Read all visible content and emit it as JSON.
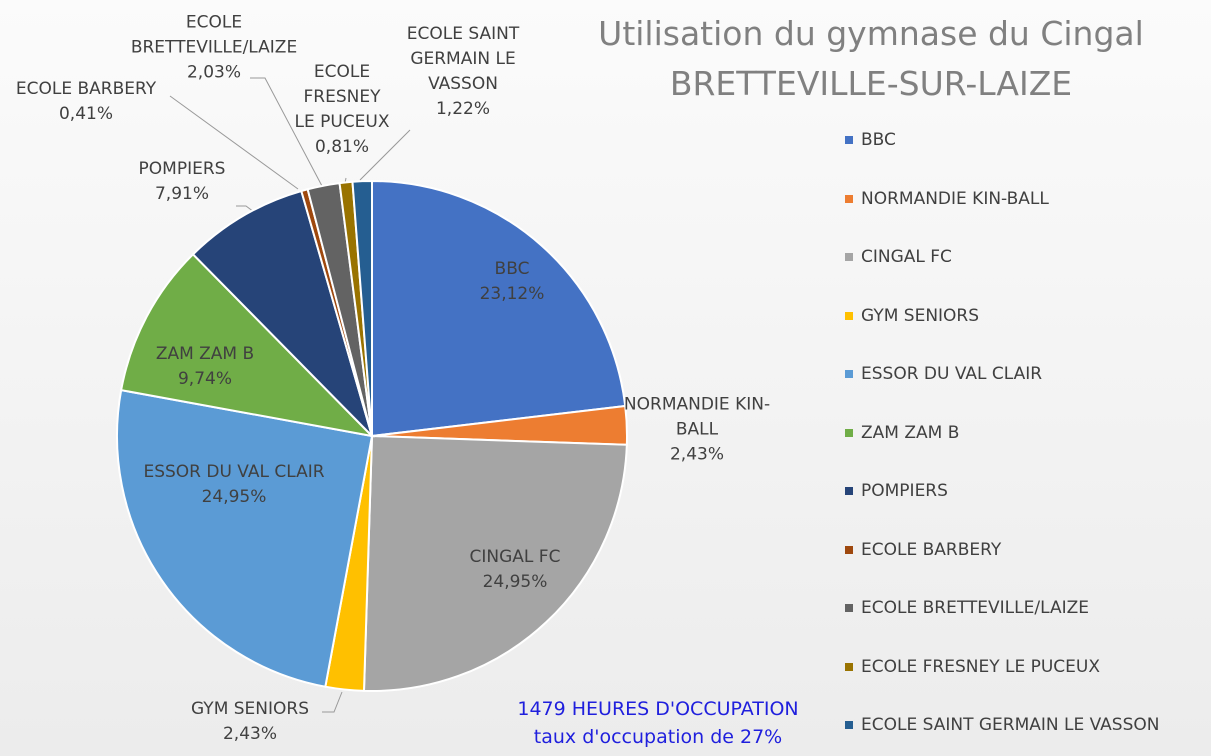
{
  "chart_data": {
    "type": "pie",
    "title": "Utilisation du gymnase du Cingal",
    "subtitle": "BRETTEVILLE-SUR-LAIZE",
    "categories": [
      "BBC",
      "NORMANDIE KIN-BALL",
      "CINGAL FC",
      "GYM SENIORS",
      "ESSOR DU VAL CLAIR",
      "ZAM ZAM B",
      "POMPIERS",
      "ECOLE BARBERY",
      "ECOLE BRETTEVILLE/LAIZE",
      "ECOLE FRESNEY LE PUCEUX",
      "ECOLE SAINT GERMAIN LE VASSON"
    ],
    "values": [
      23.12,
      2.43,
      24.95,
      2.43,
      24.95,
      9.74,
      7.91,
      0.41,
      2.03,
      0.81,
      1.22
    ],
    "value_labels": [
      "23,12%",
      "2,43%",
      "24,95%",
      "2,43%",
      "24,95%",
      "9,74%",
      "7,91%",
      "0,41%",
      "2,03%",
      "0,81%",
      "1,22%"
    ],
    "colors": [
      "#4472c4",
      "#ed7d31",
      "#a5a5a5",
      "#ffc000",
      "#5b9bd5",
      "#70ad47",
      "#264478",
      "#9e480e",
      "#636363",
      "#997300",
      "#255e91"
    ],
    "annotations": [
      "1479 HEURES D'OCCUPATION",
      "taux d'occupation de 27%"
    ],
    "legend": "right"
  }
}
